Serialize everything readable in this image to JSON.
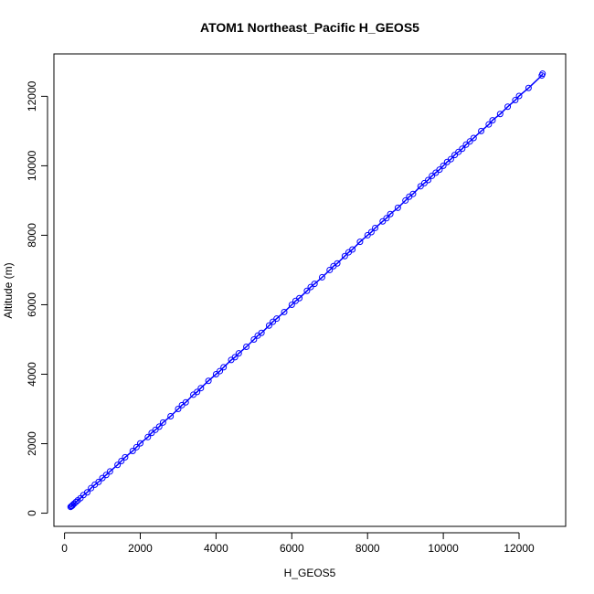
{
  "chart_data": {
    "type": "scatter",
    "title": "ATOM1 Northeast_Pacific H_GEOS5",
    "xlabel": "H_GEOS5",
    "ylabel": "Altitude (m)",
    "xlim": [
      -280,
      13230
    ],
    "ylim": [
      -380,
      13220
    ],
    "xticks": [
      0,
      2000,
      4000,
      6000,
      8000,
      10000,
      12000
    ],
    "yticks": [
      0,
      2000,
      4000,
      6000,
      8000,
      10000,
      12000
    ],
    "xtick_labels": [
      "0",
      "2000",
      "4000",
      "6000",
      "8000",
      "10000",
      "12000"
    ],
    "ytick_labels": [
      "0",
      "2000",
      "4000",
      "6000",
      "8000",
      "10000",
      "12000"
    ],
    "grid": false,
    "legend": "none",
    "series": [
      {
        "color": "#0000ff",
        "marker": "open-circle",
        "connected": true,
        "x": [
          160,
          180,
          200,
          220,
          250,
          300,
          350,
          420,
          500,
          600,
          700,
          800,
          900,
          1000,
          1100,
          1200,
          1400,
          1500,
          1600,
          1800,
          1900,
          2000,
          2200,
          2300,
          2400,
          2500,
          2600,
          2800,
          3000,
          3100,
          3200,
          3400,
          3500,
          3600,
          3800,
          4000,
          4100,
          4200,
          4400,
          4500,
          4600,
          4800,
          5000,
          5100,
          5200,
          5400,
          5500,
          5600,
          5800,
          6000,
          6100,
          6200,
          6400,
          6500,
          6600,
          6800,
          7000,
          7100,
          7200,
          7400,
          7500,
          7600,
          7800,
          8000,
          8100,
          8200,
          8400,
          8500,
          8600,
          8800,
          9000,
          9100,
          9200,
          9400,
          9500,
          9600,
          9700,
          9800,
          9900,
          10000,
          10100,
          10200,
          10300,
          10400,
          10500,
          10600,
          10700,
          10800,
          11000,
          11200,
          11300,
          11500,
          11700,
          11900,
          12000,
          12250,
          12600,
          12620
        ],
        "y": [
          180,
          200,
          210,
          240,
          270,
          320,
          370,
          430,
          520,
          600,
          720,
          820,
          900,
          1010,
          1100,
          1200,
          1390,
          1500,
          1610,
          1790,
          1900,
          2010,
          2190,
          2310,
          2400,
          2490,
          2610,
          2790,
          3000,
          3110,
          3190,
          3410,
          3490,
          3600,
          3810,
          4000,
          4090,
          4200,
          4410,
          4490,
          4600,
          4790,
          5000,
          5110,
          5190,
          5400,
          5510,
          5600,
          5790,
          6000,
          6110,
          6190,
          6400,
          6510,
          6600,
          6790,
          7000,
          7110,
          7190,
          7400,
          7510,
          7590,
          7810,
          8000,
          8090,
          8210,
          8400,
          8490,
          8610,
          8790,
          9000,
          9110,
          9190,
          9410,
          9500,
          9590,
          9710,
          9800,
          9890,
          10000,
          10110,
          10190,
          10310,
          10400,
          10490,
          10610,
          10700,
          10800,
          11000,
          11190,
          11310,
          11490,
          11700,
          11890,
          12010,
          12240,
          12600,
          12650
        ]
      }
    ]
  }
}
